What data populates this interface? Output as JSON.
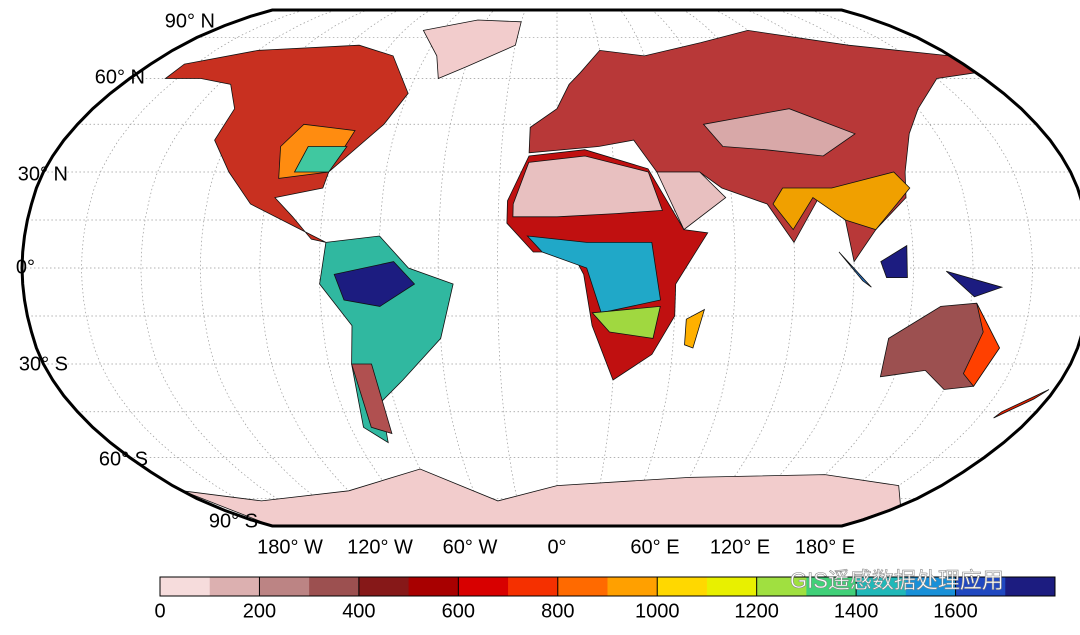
{
  "map": {
    "lat_labels": [
      "90° N",
      "60° N",
      "30° N",
      "0°",
      "30° S",
      "60° S",
      "90° S"
    ],
    "lon_labels": [
      "180° W",
      "120° W",
      "60° W",
      "0°",
      "60° E",
      "120° E",
      "180° E"
    ]
  },
  "colorbar": {
    "lim": [
      0,
      1800
    ],
    "ticks": [
      0,
      200,
      400,
      600,
      800,
      1000,
      1200,
      1400,
      1600
    ],
    "colors": [
      "#f6dcdc",
      "#dcb0b0",
      "#bc8484",
      "#9c5050",
      "#861818",
      "#a80000",
      "#d80000",
      "#f53000",
      "#ff6a00",
      "#ffa000",
      "#ffd800",
      "#e8f000",
      "#a0e040",
      "#40d078",
      "#20b8b8",
      "#1890d8",
      "#2048c0",
      "#1c1c80"
    ]
  },
  "watermark": "GIS遥感数据处理应用"
}
